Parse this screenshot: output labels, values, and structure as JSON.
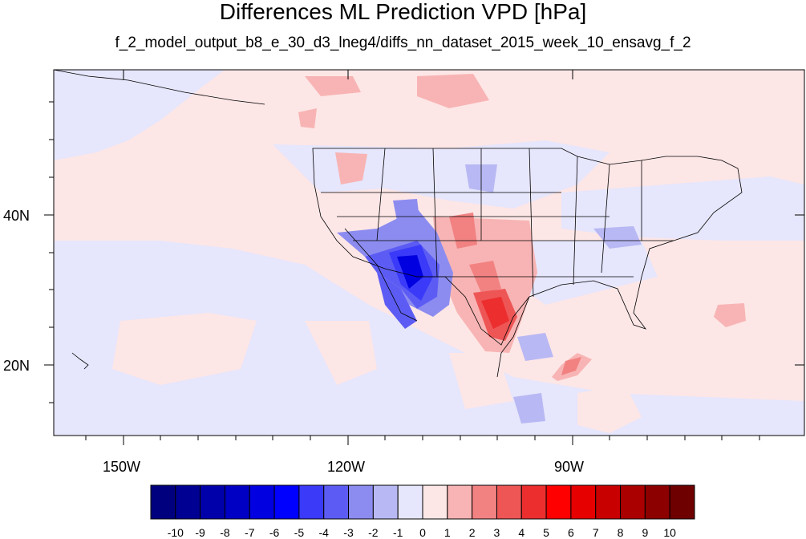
{
  "title": "Differences ML Prediction VPD [hPa]",
  "subtitle": "f_2_model_output_b8_e_30_d3_lneg4/diffs_nn_dataset_2015_week_10_ensavg_f_2",
  "lon_ticks": [
    {
      "label": "150W",
      "value": -150
    },
    {
      "label": "120W",
      "value": -120
    },
    {
      "label": "90W",
      "value": -90
    }
  ],
  "lat_ticks": [
    {
      "label": "40N",
      "value": 40
    },
    {
      "label": "20N",
      "value": 20
    }
  ],
  "colorbar": {
    "labels": [
      "-10",
      "-9",
      "-8",
      "-7",
      "-6",
      "-5",
      "-4",
      "-3",
      "-2",
      "-1",
      "0",
      "1",
      "2",
      "3",
      "4",
      "5",
      "6",
      "7",
      "8",
      "9",
      "10"
    ],
    "colors": [
      "#00007f",
      "#000093",
      "#0000aa",
      "#0000c4",
      "#0000e0",
      "#0000ff",
      "#3a3af8",
      "#5c5cf4",
      "#8c8cf0",
      "#b8b8f4",
      "#e6e6fc",
      "#fde6e6",
      "#f8b4b4",
      "#f28282",
      "#ee5656",
      "#ec2e2e",
      "#ff0000",
      "#e60000",
      "#c80000",
      "#aa0000",
      "#8c0000",
      "#6e0000"
    ]
  },
  "colors": {
    "background_negative": "#e6e6fc",
    "background_positive": "#fde6e6"
  }
}
